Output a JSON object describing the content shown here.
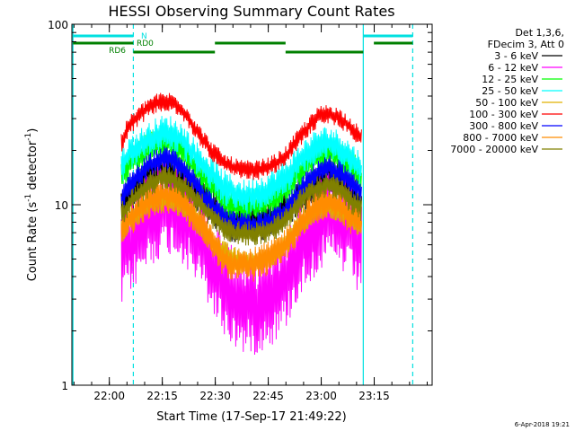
{
  "chart_data": {
    "type": "line",
    "title": "HESSI Observing Summary Count Rates",
    "xlabel": "Start Time (17-Sep-17 21:49:22)",
    "ylabel_main": "Count Rate (s",
    "ylabel_sup1": "-1",
    "ylabel_mid": " detector",
    "ylabel_sup2": "-1",
    "ylabel_end": ")",
    "x_unit": "minutes after 21:49:22",
    "xlim": [
      0,
      102
    ],
    "ylim": [
      1,
      100
    ],
    "yscale": "log",
    "x_ticks": [
      {
        "label": "22:00",
        "x": 10.6
      },
      {
        "label": "22:15",
        "x": 25.6
      },
      {
        "label": "22:30",
        "x": 40.6
      },
      {
        "label": "22:45",
        "x": 55.6
      },
      {
        "label": "23:00",
        "x": 70.6
      },
      {
        "label": "23:15",
        "x": 85.6
      }
    ],
    "y_ticks": [
      {
        "label": "1",
        "value": 1
      },
      {
        "label": "10",
        "value": 10
      },
      {
        "label": "100",
        "value": 100
      }
    ],
    "legend": {
      "position": "right",
      "header_line1": "Det 1,3,6,",
      "header_line2": "FDecim 3, Att 0"
    },
    "x": [
      14,
      16,
      19,
      22,
      25,
      28,
      31,
      34,
      37,
      40,
      43,
      46,
      49,
      52,
      55,
      58,
      61,
      64,
      67,
      70,
      73,
      76,
      79,
      82
    ],
    "series": [
      {
        "name": "3 - 6 keV",
        "color": "#000000",
        "noise": 0.08,
        "values": [
          9.5,
          11,
          12.5,
          14,
          15,
          15,
          14,
          12.5,
          11,
          9.5,
          8.3,
          8,
          8,
          8,
          8.3,
          8.7,
          9.5,
          11,
          12,
          13.5,
          14,
          13,
          11.5,
          10
        ]
      },
      {
        "name": "6 - 12 keV",
        "color": "#ff00ff",
        "noise": 0.2,
        "values": [
          5,
          6,
          7,
          8.5,
          9.5,
          10,
          9,
          7.5,
          6,
          4.5,
          3.5,
          3,
          2.8,
          2.8,
          3,
          3.3,
          4,
          5.5,
          6.8,
          8,
          8.5,
          8,
          7,
          5.5
        ]
      },
      {
        "name": "12 - 25 keV",
        "color": "#00ff00",
        "noise": 0.07,
        "values": [
          14,
          16.5,
          18.5,
          20.5,
          22,
          22,
          20,
          17,
          14.5,
          12.5,
          10.5,
          10,
          9.8,
          10,
          10.5,
          11,
          12.5,
          15,
          17,
          19,
          19.5,
          18,
          16,
          14
        ]
      },
      {
        "name": "25 - 50 keV",
        "color": "#00ffff",
        "noise": 0.07,
        "values": [
          16,
          19,
          21,
          23,
          25,
          25,
          23,
          19.5,
          16.5,
          14.5,
          12.5,
          11.5,
          11,
          11.5,
          12,
          13,
          14.5,
          17,
          19.5,
          21.5,
          22,
          20.5,
          18,
          15.5
        ]
      },
      {
        "name": "50 - 100 keV",
        "color": "#e0b000",
        "noise": 0.05,
        "values": [
          7,
          8,
          9,
          10,
          10.5,
          10.5,
          10,
          8.8,
          7.5,
          6.2,
          5.4,
          5,
          4.8,
          4.8,
          5,
          5.4,
          6.2,
          7.5,
          8.5,
          9.5,
          9.8,
          9.2,
          8.2,
          7.5
        ]
      },
      {
        "name": "100 - 300 keV",
        "color": "#ff0000",
        "noise": 0.04,
        "values": [
          22,
          27,
          31,
          35,
          37,
          37,
          34,
          28,
          23,
          19.5,
          17,
          16,
          15.5,
          15.5,
          16,
          17,
          19,
          23,
          27,
          31,
          32,
          30,
          27,
          23
        ]
      },
      {
        "name": "300 - 800 keV",
        "color": "#0000ff",
        "noise": 0.05,
        "values": [
          10.5,
          12.5,
          14.5,
          16.5,
          18,
          18,
          16.5,
          14,
          11.5,
          9.5,
          8.3,
          7.8,
          7.7,
          7.7,
          8,
          8.5,
          9.5,
          11.5,
          13.5,
          15.5,
          16,
          15,
          13,
          11.5
        ]
      },
      {
        "name": "800 - 7000 keV",
        "color": "#ff8c00",
        "noise": 0.07,
        "values": [
          7,
          8,
          9.5,
          10.5,
          11.5,
          11.5,
          10.5,
          9,
          7.5,
          6,
          5,
          4.7,
          4.6,
          4.7,
          5,
          5.4,
          6.2,
          7.5,
          9,
          10,
          10.5,
          9.8,
          8.5,
          7.5
        ]
      },
      {
        "name": "7000 - 20000 keV",
        "color": "#808000",
        "noise": 0.05,
        "values": [
          8.8,
          10,
          11.5,
          13,
          14,
          14,
          13,
          11.5,
          9.8,
          8.5,
          7.5,
          7,
          6.9,
          6.9,
          7.2,
          7.6,
          8.5,
          10,
          11.5,
          12.5,
          13,
          12,
          10.5,
          9.5
        ]
      }
    ],
    "flags": {
      "color": "#008000",
      "labels": [
        {
          "text": "N",
          "color": "#00e0e0"
        },
        {
          "text": "RD0",
          "color": "#008000"
        },
        {
          "text": "RD6",
          "color": "#008000"
        }
      ]
    },
    "vertical_lines": {
      "color": "#00e0e0",
      "solid_x": [
        0.3,
        82.5
      ],
      "dashed_x": [
        17.4,
        96.5
      ]
    }
  },
  "footer": {
    "timestamp": "6-Apr-2018 19:21"
  }
}
